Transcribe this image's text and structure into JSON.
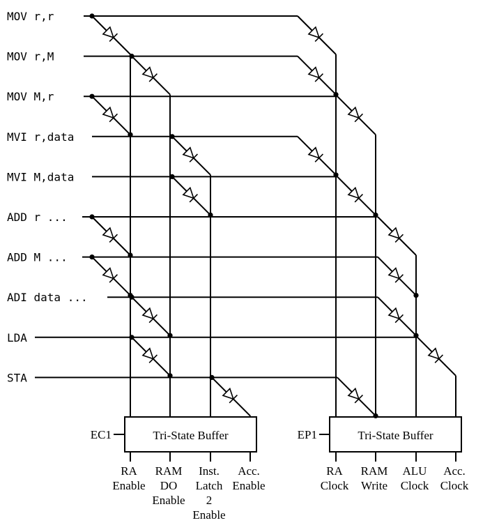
{
  "instructions": [
    "MOV r,r",
    "MOV r,M",
    "MOV M,r",
    "MVI r,data",
    "MVI M,data",
    "ADD r ...",
    "ADD M ...",
    "ADI data ...",
    "LDA",
    "STA"
  ],
  "left_buffer": {
    "title": "Tri-State Buffer",
    "input": "EC1",
    "outputs": [
      [
        "RA",
        "Enable"
      ],
      [
        "RAM",
        "DO",
        "Enable"
      ],
      [
        "Inst.",
        "Latch",
        "2",
        "Enable"
      ],
      [
        "Acc.",
        "Enable"
      ]
    ]
  },
  "right_buffer": {
    "title": "Tri-State Buffer",
    "input": "EP1",
    "outputs": [
      [
        "RA",
        "Clock"
      ],
      [
        "RAM",
        "Write"
      ],
      [
        "ALU",
        "Clock"
      ],
      [
        "Acc.",
        "Clock"
      ]
    ]
  },
  "connections": [
    {
      "instruction": 0,
      "bank": "left",
      "output": 0
    },
    {
      "instruction": 0,
      "bank": "right",
      "output": 0
    },
    {
      "instruction": 1,
      "bank": "left",
      "output": 1
    },
    {
      "instruction": 1,
      "bank": "right",
      "output": 0
    },
    {
      "instruction": 2,
      "bank": "left",
      "output": 0
    },
    {
      "instruction": 2,
      "bank": "right",
      "output": 1
    },
    {
      "instruction": 3,
      "bank": "left",
      "output": 2
    },
    {
      "instruction": 3,
      "bank": "right",
      "output": 0
    },
    {
      "instruction": 4,
      "bank": "left",
      "output": 2
    },
    {
      "instruction": 4,
      "bank": "right",
      "output": 1
    },
    {
      "instruction": 5,
      "bank": "left",
      "output": 0
    },
    {
      "instruction": 5,
      "bank": "right",
      "output": 2
    },
    {
      "instruction": 6,
      "bank": "left",
      "output": 0
    },
    {
      "instruction": 6,
      "bank": "right",
      "output": 2
    },
    {
      "instruction": 7,
      "bank": "left",
      "output": 1
    },
    {
      "instruction": 7,
      "bank": "right",
      "output": 2
    },
    {
      "instruction": 8,
      "bank": "left",
      "output": 1
    },
    {
      "instruction": 8,
      "bank": "right",
      "output": 3
    },
    {
      "instruction": 9,
      "bank": "left",
      "output": 3
    },
    {
      "instruction": 9,
      "bank": "right",
      "output": 1
    }
  ]
}
